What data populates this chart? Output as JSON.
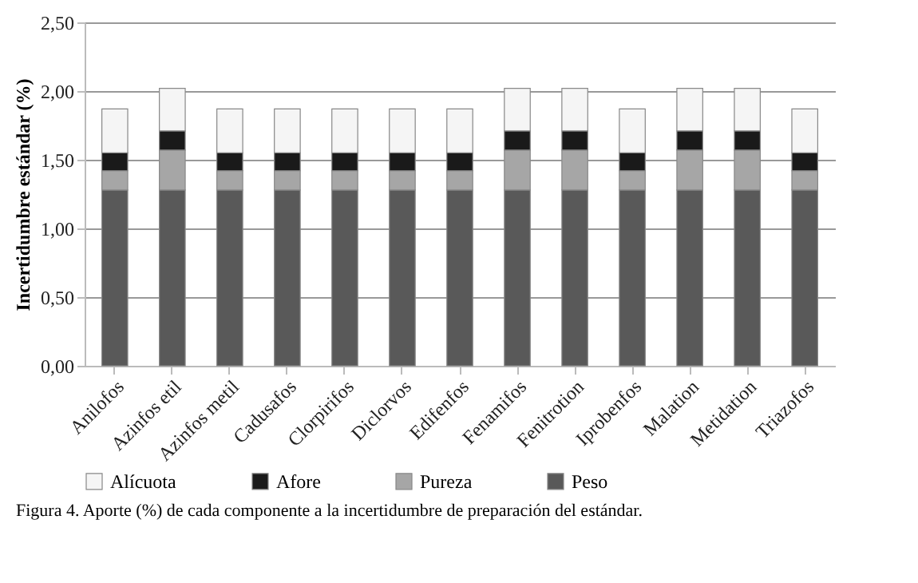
{
  "chart_data": {
    "type": "bar",
    "stacked": true,
    "ylabel": "Incertidumbre estándar (%)",
    "categories": [
      "Anilofos",
      "Azinfos etil",
      "Azinfos metil",
      "Cadusafos",
      "Clorpirifos",
      "Diclorvos",
      "Edifenfos",
      "Fenamifos",
      "Fenitrotion",
      "Iprobenfos",
      "Malation",
      "Metidation",
      "Triazofos"
    ],
    "series": [
      {
        "name": "Peso",
        "color": "#595959",
        "values": [
          1.28,
          1.28,
          1.28,
          1.28,
          1.28,
          1.28,
          1.28,
          1.28,
          1.28,
          1.28,
          1.28,
          1.28,
          1.28
        ]
      },
      {
        "name": "Pureza",
        "color": "#a6a6a6",
        "values": [
          0.14,
          0.29,
          0.14,
          0.14,
          0.14,
          0.14,
          0.14,
          0.29,
          0.29,
          0.14,
          0.29,
          0.29,
          0.14
        ]
      },
      {
        "name": "Afore",
        "color": "#1a1a1a",
        "values": [
          0.13,
          0.14,
          0.13,
          0.13,
          0.13,
          0.13,
          0.13,
          0.14,
          0.14,
          0.13,
          0.14,
          0.14,
          0.13
        ]
      },
      {
        "name": "Alícuota",
        "color": "#f5f5f5",
        "values": [
          0.32,
          0.31,
          0.32,
          0.32,
          0.32,
          0.32,
          0.32,
          0.31,
          0.31,
          0.32,
          0.31,
          0.31,
          0.32
        ]
      }
    ],
    "ylim": [
      0,
      2.5
    ],
    "yticks": [
      {
        "value": 0,
        "label": "0,00"
      },
      {
        "value": 0.5,
        "label": "0,50"
      },
      {
        "value": 1,
        "label": "1,00"
      },
      {
        "value": 1.5,
        "label": "1,50"
      },
      {
        "value": 2,
        "label": "2,00"
      },
      {
        "value": 2.5,
        "label": "2,50"
      }
    ],
    "grid": "y",
    "legend": "bottom",
    "annotations": [
      "Figura 4. Aporte (%) de cada componente a la incertidumbre de preparación del estándar."
    ]
  }
}
